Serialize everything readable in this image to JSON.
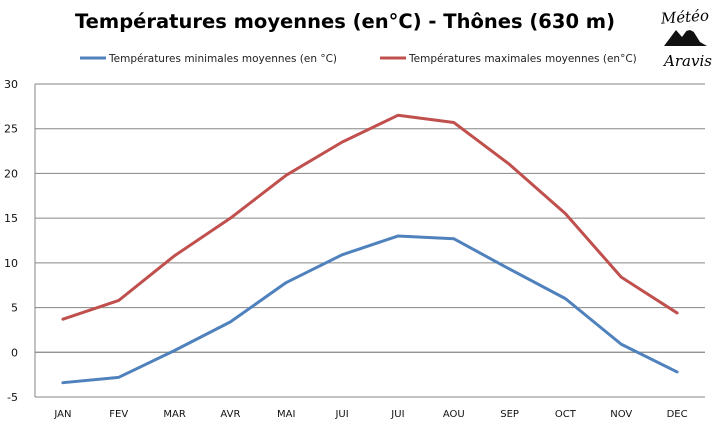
{
  "chart_data": {
    "type": "line",
    "title": "Températures moyennes (en°C) - Thônes (630 m)",
    "categories": [
      "JAN",
      "FEV",
      "MAR",
      "AVR",
      "MAI",
      "JUI",
      "JUI",
      "AOU",
      "SEP",
      "OCT",
      "NOV",
      "DEC"
    ],
    "series": [
      {
        "name": "Températures minimales moyennes (en °C)",
        "color": "#4f81bd",
        "values": [
          -3.4,
          -2.8,
          0.2,
          3.4,
          7.8,
          10.9,
          13.0,
          12.7,
          9.3,
          6.0,
          0.9,
          -2.2
        ]
      },
      {
        "name": "Températures maximales moyennes (en°C)",
        "color": "#c0504d",
        "values": [
          3.7,
          5.8,
          10.8,
          15.0,
          19.8,
          23.5,
          26.5,
          25.7,
          21.0,
          15.5,
          8.4,
          4.4
        ]
      }
    ],
    "yticks": [
      "30",
      "25",
      "20",
      "15",
      "10",
      "5",
      "0",
      "-5"
    ],
    "ylim": [
      -5,
      30
    ],
    "grid": true,
    "legend": "top"
  },
  "logo": {
    "line1": "Météo",
    "line2": "Aravis"
  }
}
